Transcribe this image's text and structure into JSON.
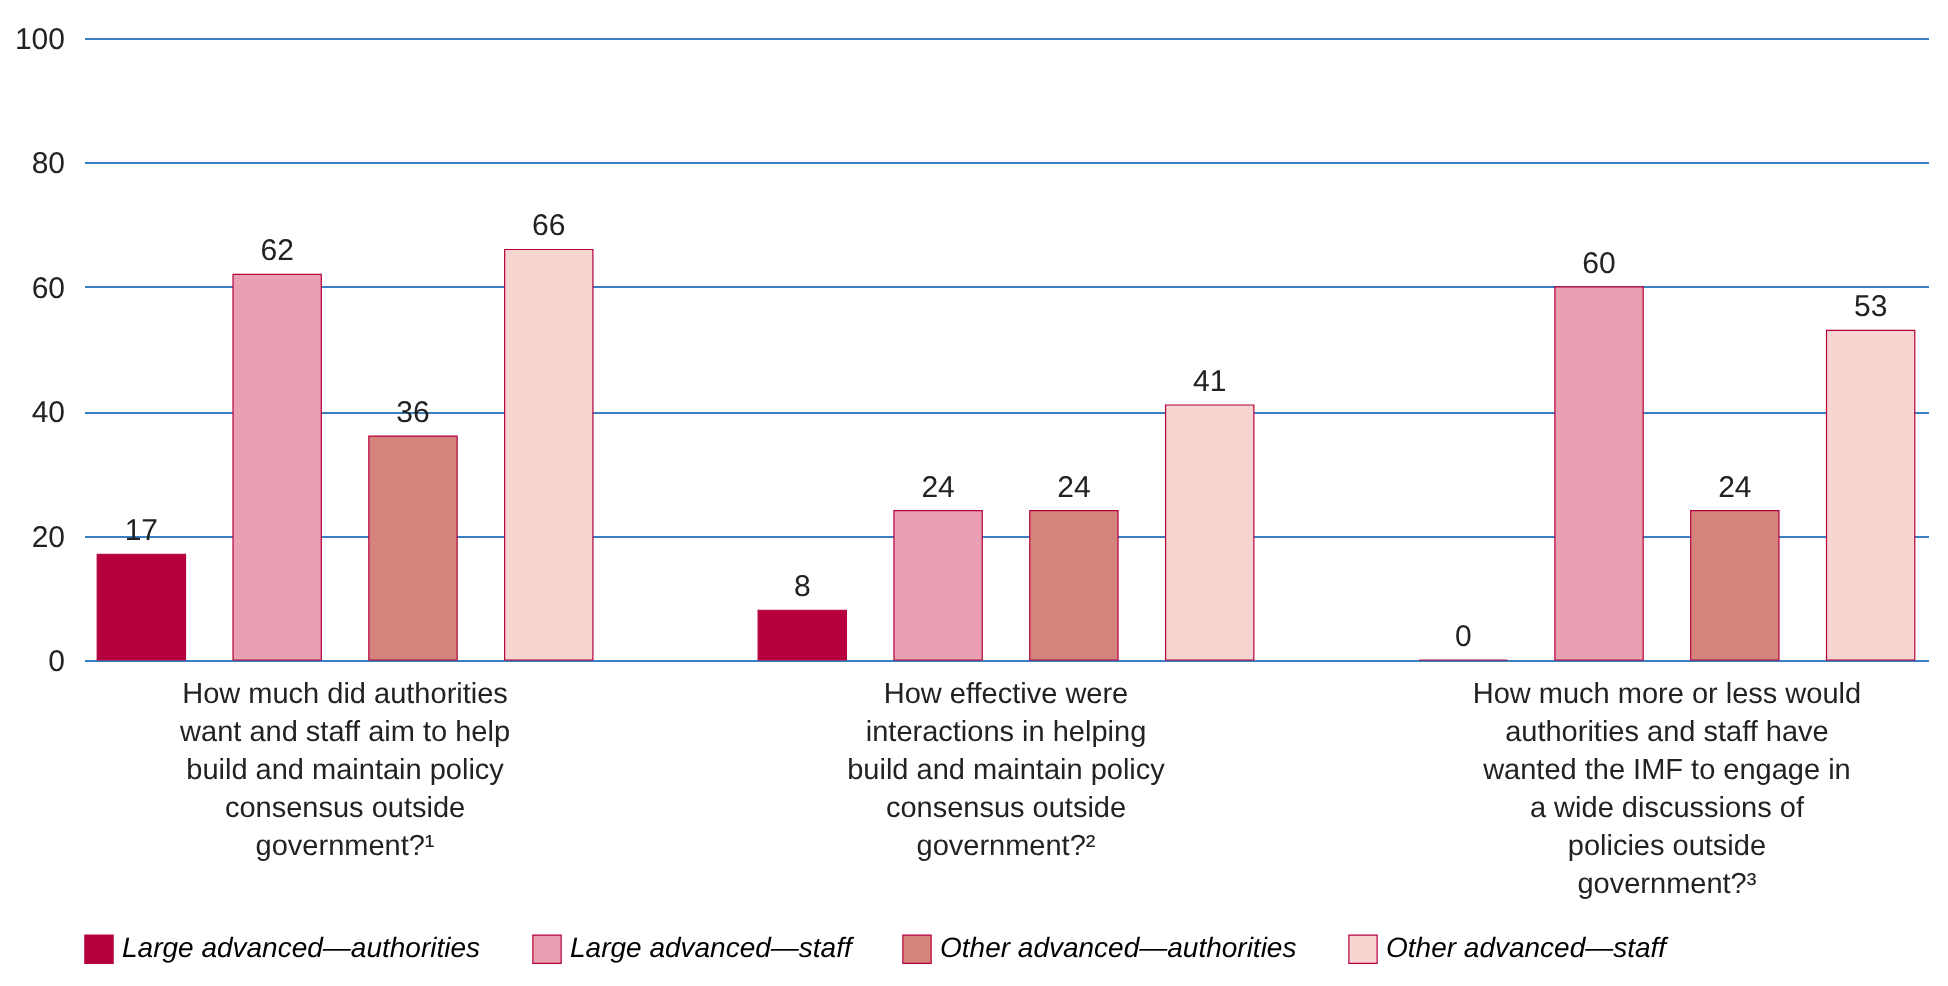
{
  "chart_data": {
    "type": "bar",
    "categories": [
      "How much did authorities want and staff aim to help build and maintain policy consensus outside government?¹",
      "How effective were interactions in helping build and maintain policy consensus outside government?²",
      "How much more or less would authorities and staff have wanted the IMF to engage in a wide discussions of policies outside government?³"
    ],
    "series": [
      {
        "name": "Large advanced—authorities",
        "color": "#b5003c",
        "values": [
          17,
          8,
          0
        ]
      },
      {
        "name": "Large advanced—staff",
        "color": "#e8a0b2",
        "values": [
          62,
          24,
          60
        ]
      },
      {
        "name": "Other advanced—authorities",
        "color": "#d4847c",
        "values": [
          36,
          24,
          24
        ]
      },
      {
        "name": "Other advanced—staff",
        "color": "#f6d4cf",
        "values": [
          66,
          41,
          53
        ]
      }
    ],
    "ylim": [
      0,
      100
    ],
    "yticks": [
      0,
      20,
      40,
      60,
      80,
      100
    ],
    "grid": "y",
    "legend": "bottom",
    "data_labels": true
  }
}
